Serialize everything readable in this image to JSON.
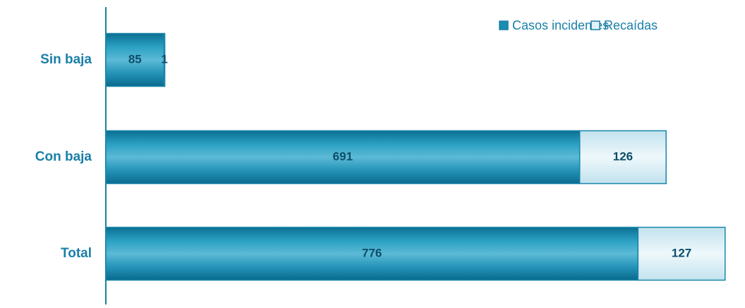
{
  "chart_data": {
    "type": "stacked-barh",
    "categories": [
      "Sin baja",
      "Con baja",
      "Total"
    ],
    "series": [
      {
        "name": "Casos incidentes",
        "color": "#1a8db0",
        "values": [
          85,
          691,
          776
        ]
      },
      {
        "name": "Recaídas",
        "color": "#d9eef5",
        "values": [
          1,
          126,
          127
        ]
      }
    ],
    "xlim": [
      0,
      932
    ],
    "legend": "top-right"
  }
}
